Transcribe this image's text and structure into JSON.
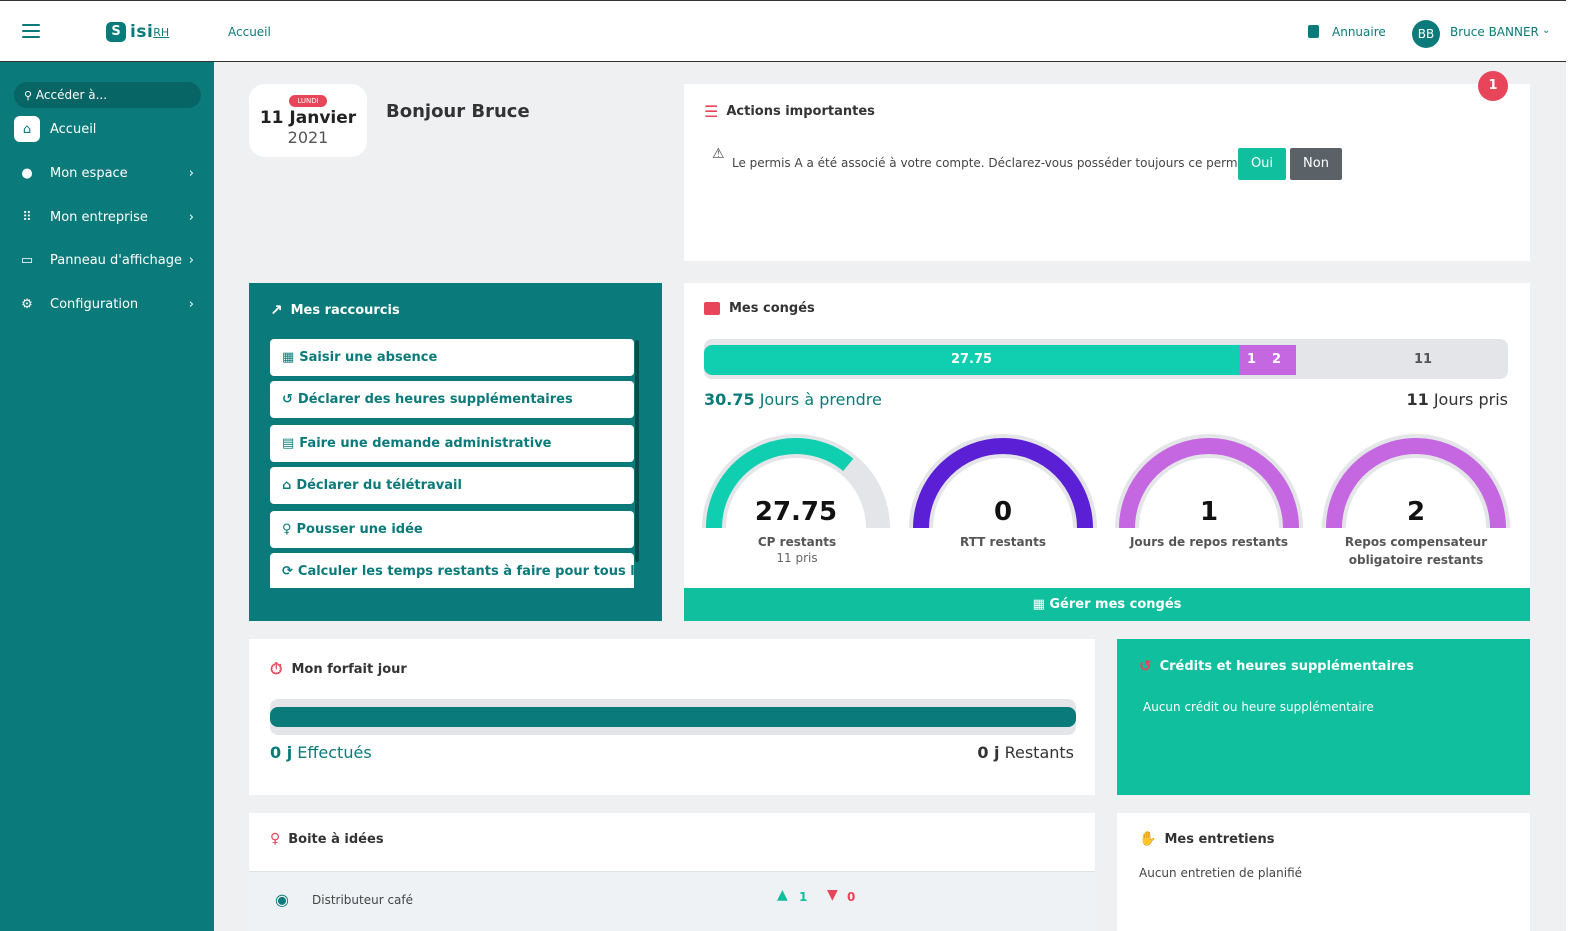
{
  "topbar": {
    "logo_letter": "S",
    "logo_text": "isi",
    "logo_suffix": "RH",
    "home_link": "Accueil",
    "directory_link": "Annuaire",
    "user_initials": "BB",
    "user_name": "Bruce BANNER"
  },
  "sidebar": {
    "search_placeholder": "Accéder à...",
    "items": [
      {
        "label": "Accueil",
        "icon": "home-icon"
      },
      {
        "label": "Mon espace",
        "icon": "user-icon"
      },
      {
        "label": "Mon entreprise",
        "icon": "grid-icon"
      },
      {
        "label": "Panneau d'affichage",
        "icon": "board-icon"
      },
      {
        "label": "Configuration",
        "icon": "gears-icon"
      }
    ]
  },
  "date": {
    "weekday": "LUNDI",
    "day_month": "11 Janvier",
    "year": "2021"
  },
  "greeting": "Bonjour Bruce",
  "actions": {
    "title": "Actions importantes",
    "message": "Le permis A a été associé à votre compte. Déclarez-vous posséder toujours ce permis ?",
    "yes": "Oui",
    "no": "Non",
    "badge_count": "1"
  },
  "shortcuts": {
    "title": "Mes raccourcis",
    "items": [
      "Saisir une absence",
      "Déclarer des heures supplémentaires",
      "Faire une demande administrative",
      "Déclarer du télétravail",
      "Pousser une idée",
      "Calculer les temps restants à faire pour tous les utilis"
    ]
  },
  "leave": {
    "title": "Mes congés",
    "bar": {
      "cp": 27.75,
      "rtt_label": "1",
      "repos_label": "2",
      "taken": 11,
      "cp_label": "27.75",
      "taken_label": "11"
    },
    "to_take_value": "30.75",
    "to_take_label": "Jours à prendre",
    "taken_value": "11",
    "taken_label": "Jours pris",
    "gauges": [
      {
        "value": "27.75",
        "label": "CP restants",
        "sub": "11 pris",
        "fraction": 0.72,
        "color": "#0fcfb0"
      },
      {
        "value": "0",
        "label": "RTT restants",
        "sub": "",
        "fraction": 1.0,
        "color": "#5b1fd6"
      },
      {
        "value": "1",
        "label": "Jours de repos restants",
        "sub": "",
        "fraction": 1.0,
        "color": "#c567e0"
      },
      {
        "value": "2",
        "label": "Repos compensateur obligatoire restants",
        "sub": "",
        "fraction": 1.0,
        "color": "#c567e0"
      }
    ],
    "manage_button": "Gérer mes congés"
  },
  "forfait": {
    "title": "Mon forfait jour",
    "done_value": "0 j",
    "done_label": "Effectués",
    "remaining_value": "0 j",
    "remaining_label": "Restants"
  },
  "credits": {
    "title": "Crédits et heures supplémentaires",
    "empty": "Aucun crédit ou heure supplémentaire"
  },
  "ideas": {
    "title": "Boite à idées",
    "items": [
      {
        "label": "Distributeur café",
        "likes": "1",
        "dislikes": "0"
      }
    ]
  },
  "interviews": {
    "title": "Mes entretiens",
    "empty": "Aucun entretien de planifié"
  },
  "colors": {
    "brand": "#0b7a7a",
    "accent": "#0fcfb0",
    "danger": "#e8455a",
    "purple": "#c567e0",
    "violet": "#5b1fd6"
  }
}
